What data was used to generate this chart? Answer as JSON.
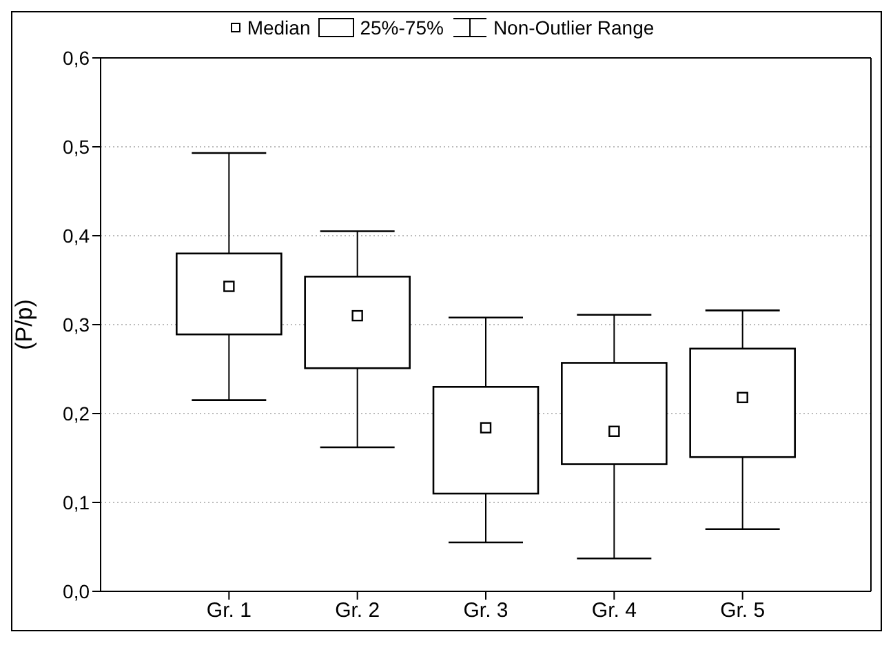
{
  "chart_data": {
    "type": "box",
    "ylabel": "(P/p)",
    "categories": [
      "Gr. 1",
      "Gr. 2",
      "Gr. 3",
      "Gr. 4",
      "Gr. 5"
    ],
    "series": [
      {
        "color": "#000000",
        "boxes": [
          {
            "low": 0.215,
            "q1": 0.289,
            "median": 0.343,
            "q3": 0.38,
            "high": 0.493
          },
          {
            "low": 0.162,
            "q1": 0.251,
            "median": 0.31,
            "q3": 0.354,
            "high": 0.405
          },
          {
            "low": 0.055,
            "q1": 0.11,
            "median": 0.184,
            "q3": 0.23,
            "high": 0.308
          },
          {
            "low": 0.037,
            "q1": 0.143,
            "median": 0.18,
            "q3": 0.257,
            "high": 0.311
          },
          {
            "low": 0.07,
            "q1": 0.151,
            "median": 0.218,
            "q3": 0.273,
            "high": 0.316
          }
        ]
      }
    ],
    "ylim": [
      0,
      0.6
    ],
    "yticks": [
      {
        "value": 0,
        "label": "0,0"
      },
      {
        "value": 0.1,
        "label": "0,1"
      },
      {
        "value": 0.2,
        "label": "0,2"
      },
      {
        "value": 0.3,
        "label": "0,3"
      },
      {
        "value": 0.4,
        "label": "0,4"
      },
      {
        "value": 0.5,
        "label": "0,5"
      },
      {
        "value": 0.6,
        "label": "0,6"
      }
    ],
    "grid": "y",
    "marker": "square",
    "annotations": [
      "Median",
      "25%-75%",
      "Non-Outlier Range"
    ]
  }
}
